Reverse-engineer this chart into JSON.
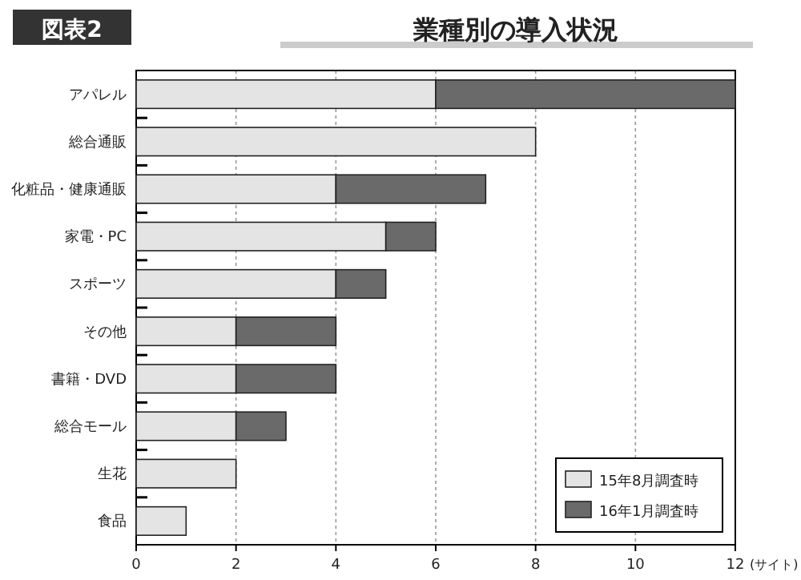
{
  "chart_data": {
    "type": "bar",
    "orientation": "horizontal",
    "stacked": true,
    "title": "業種別の導入状況",
    "annotations": [
      "図表2"
    ],
    "xlabel": "(サイト)",
    "categories": [
      "アパレル",
      "総合通販",
      "化粧品・健康通販",
      "家電・PC",
      "スポーツ",
      "その他",
      "書籍・DVD",
      "総合モール",
      "生花",
      "食品"
    ],
    "series": [
      {
        "name": "15年8月調査時",
        "color": "#e4e4e4",
        "values": [
          6,
          8,
          4,
          5,
          4,
          2,
          2,
          2,
          2,
          1
        ]
      },
      {
        "name": "16年1月調査時",
        "color": "#6a6a6a",
        "values": [
          6,
          null,
          3,
          1,
          1,
          2,
          2,
          1,
          null,
          null
        ]
      }
    ],
    "xlim": [
      0,
      12
    ],
    "xticks": [
      0,
      2,
      4,
      6,
      8,
      10,
      12
    ],
    "grid": "x",
    "legend": "bottom right"
  }
}
